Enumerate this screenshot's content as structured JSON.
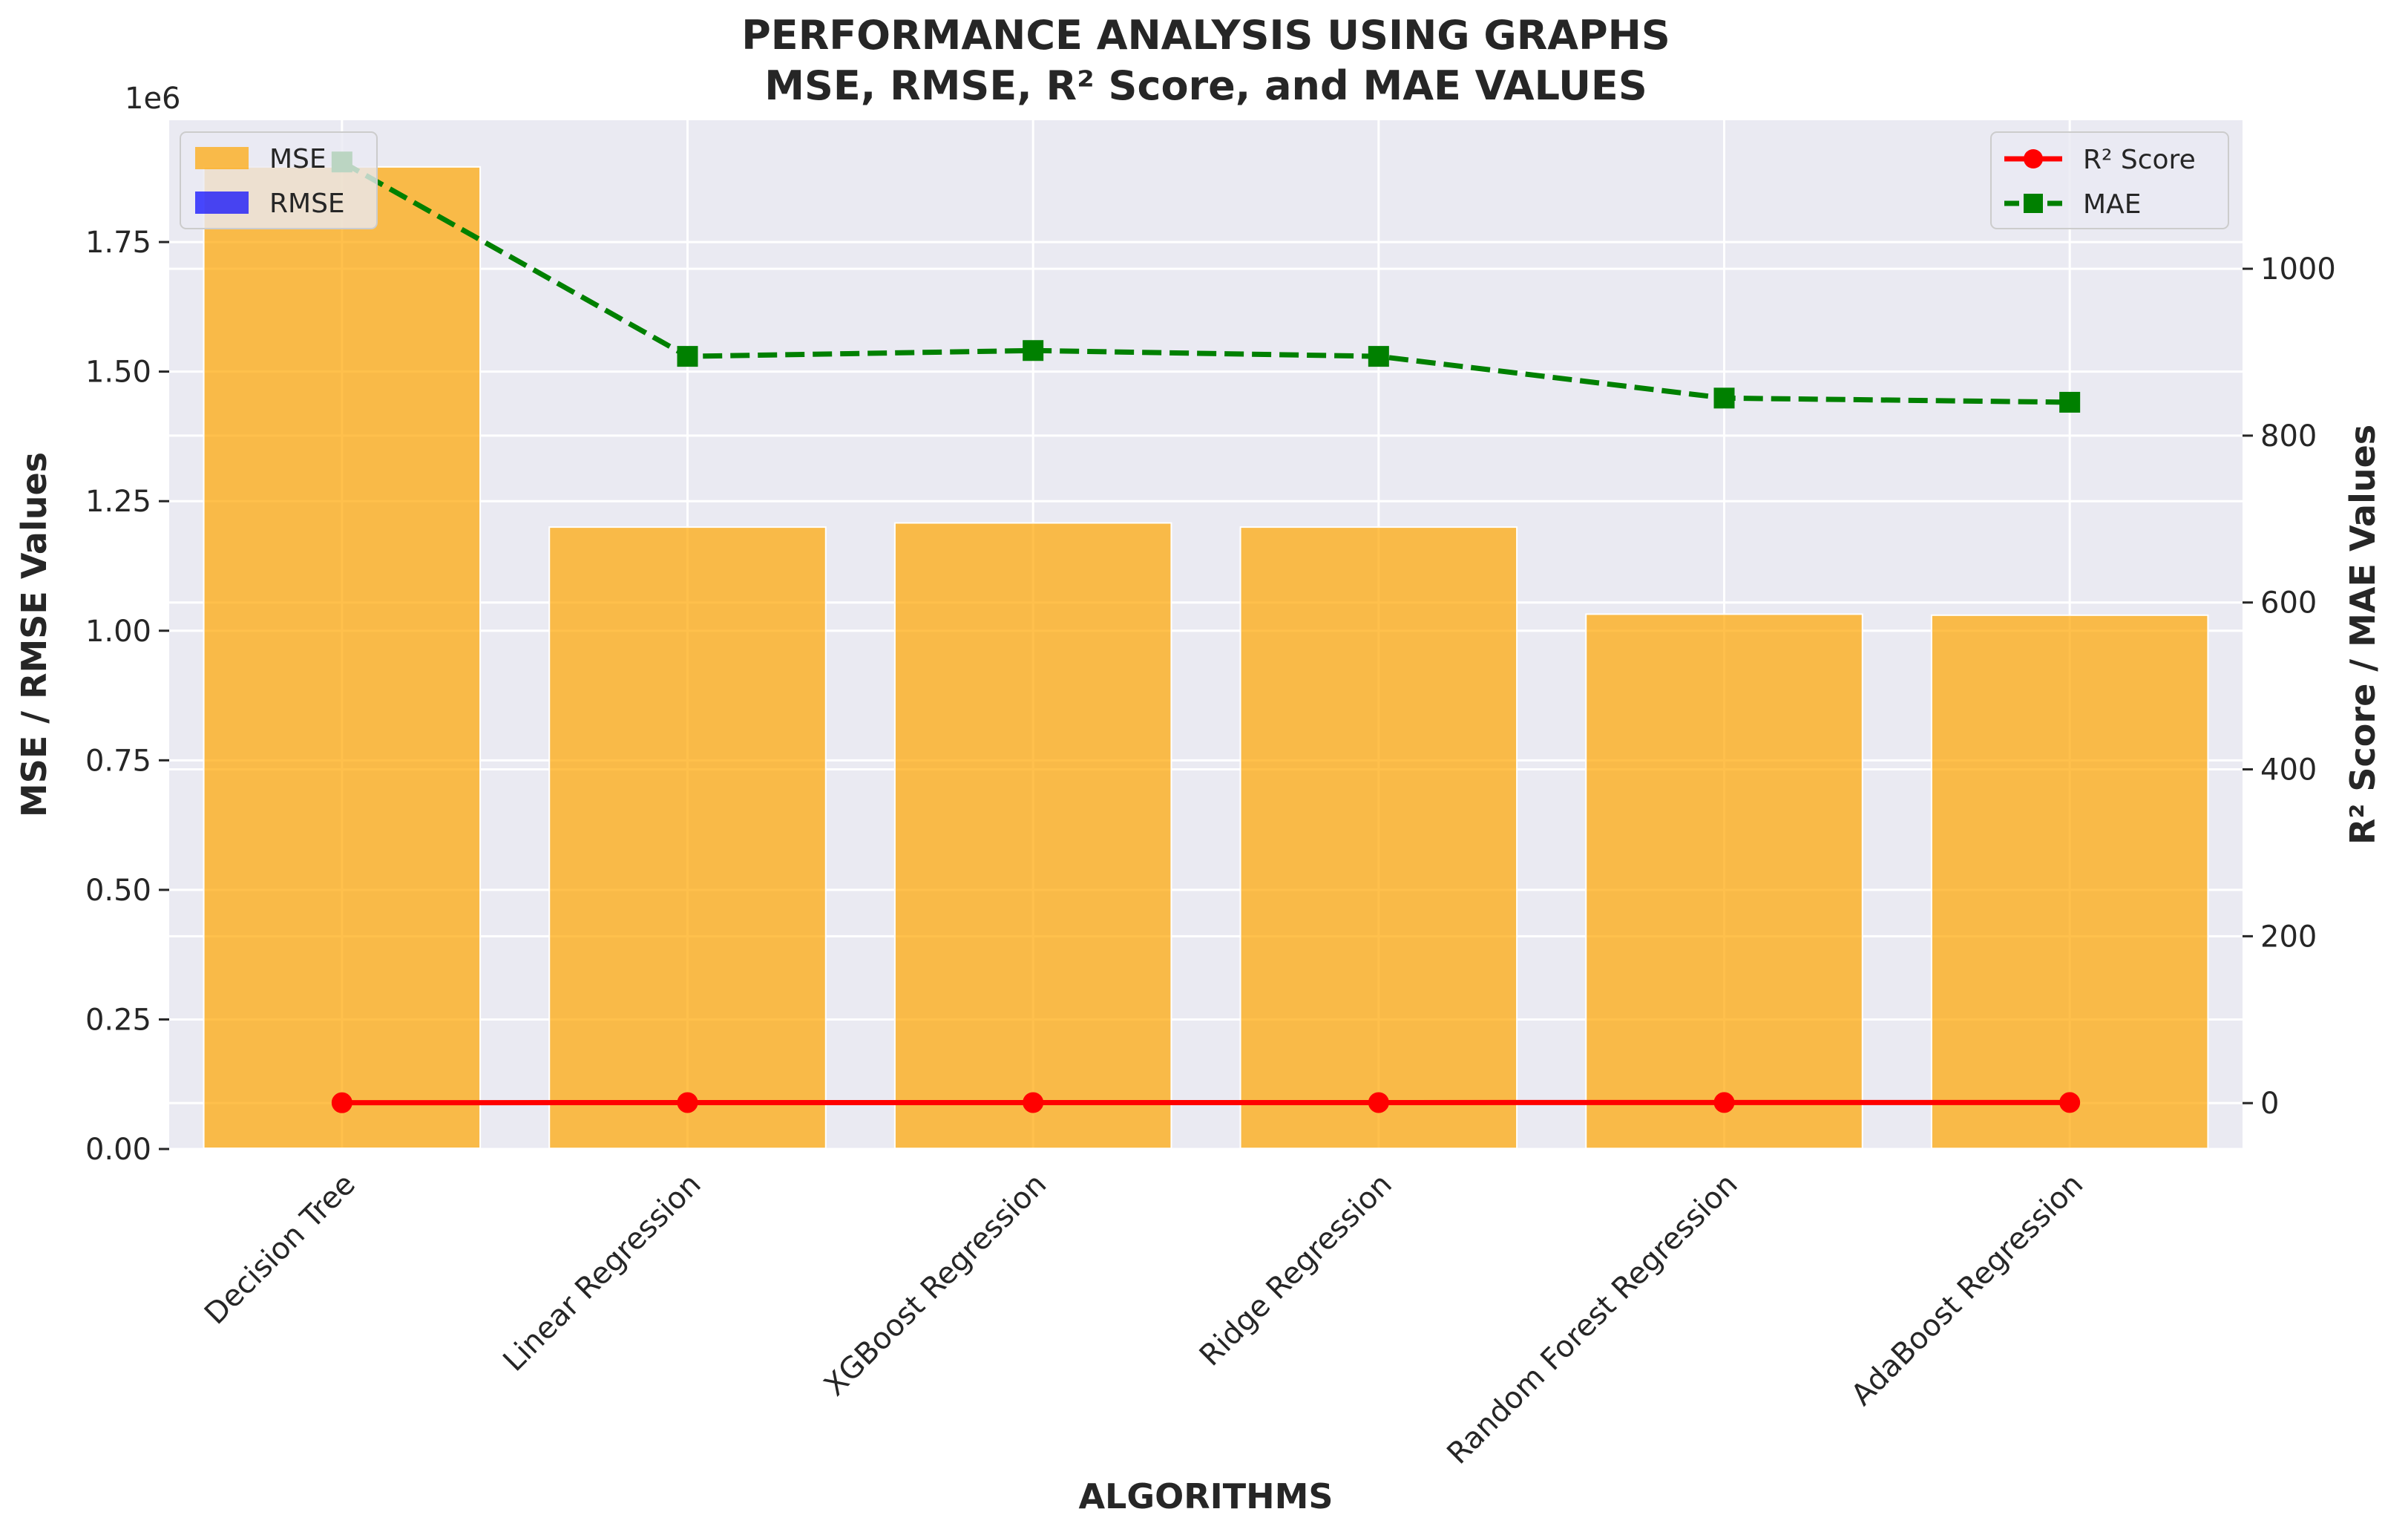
{
  "chart_data": {
    "type": "bar",
    "title": [
      "PERFORMANCE ANALYSIS USING GRAPHS",
      "MSE, RMSE, R² Score, and MAE VALUES"
    ],
    "xlabel": "ALGORITHMS",
    "ylabel_left": "MSE / RMSE Values",
    "ylabel_right": "R² Score / MAE Values",
    "left_offset_label": "1e6",
    "categories": [
      "Decision Tree",
      "Linear Regression",
      "XGBoost Regression",
      "Ridge Regression",
      "Random Forest Regression",
      "AdaBoost Regression"
    ],
    "left_axis": {
      "ylim": [
        0,
        1985000
      ],
      "ticks": [
        0,
        250000,
        500000,
        750000,
        1000000,
        1250000,
        1500000,
        1750000
      ],
      "tick_labels": [
        "0.00",
        "0.25",
        "0.50",
        "0.75",
        "1.00",
        "1.25",
        "1.50",
        "1.75"
      ]
    },
    "right_axis": {
      "ylim": [
        -55,
        1178
      ],
      "ticks": [
        0,
        200,
        400,
        600,
        800,
        1000
      ],
      "tick_labels": [
        "0",
        "200",
        "400",
        "600",
        "800",
        "1000"
      ]
    },
    "series": [
      {
        "name": "MSE",
        "kind": "bar",
        "axis": "left",
        "color": "#FFA500",
        "alpha": 0.7,
        "values": [
          1895000,
          1200000,
          1208000,
          1200000,
          1032000,
          1030000
        ]
      },
      {
        "name": "RMSE",
        "kind": "bar",
        "axis": "left",
        "color": "#0000FF",
        "alpha": 0.7,
        "values": [
          1377,
          1095,
          1099,
          1095,
          1016,
          1015
        ]
      },
      {
        "name": "R² Score",
        "kind": "line",
        "axis": "right",
        "color": "#FF0000",
        "marker": "circle",
        "linestyle": "solid",
        "values": [
          0.45,
          0.65,
          0.65,
          0.65,
          0.7,
          0.7
        ]
      },
      {
        "name": "MAE",
        "kind": "line",
        "axis": "right",
        "color": "#008000",
        "marker": "square",
        "linestyle": "dashed",
        "values": [
          1128,
          895,
          902,
          895,
          845,
          840
        ]
      }
    ],
    "legends": {
      "left": [
        "MSE",
        "RMSE"
      ],
      "right": [
        "R² Score",
        "MAE"
      ]
    },
    "legend_position": {
      "left": "upper left",
      "right": "upper right"
    },
    "grid": true,
    "background": "#EAEAF2"
  }
}
